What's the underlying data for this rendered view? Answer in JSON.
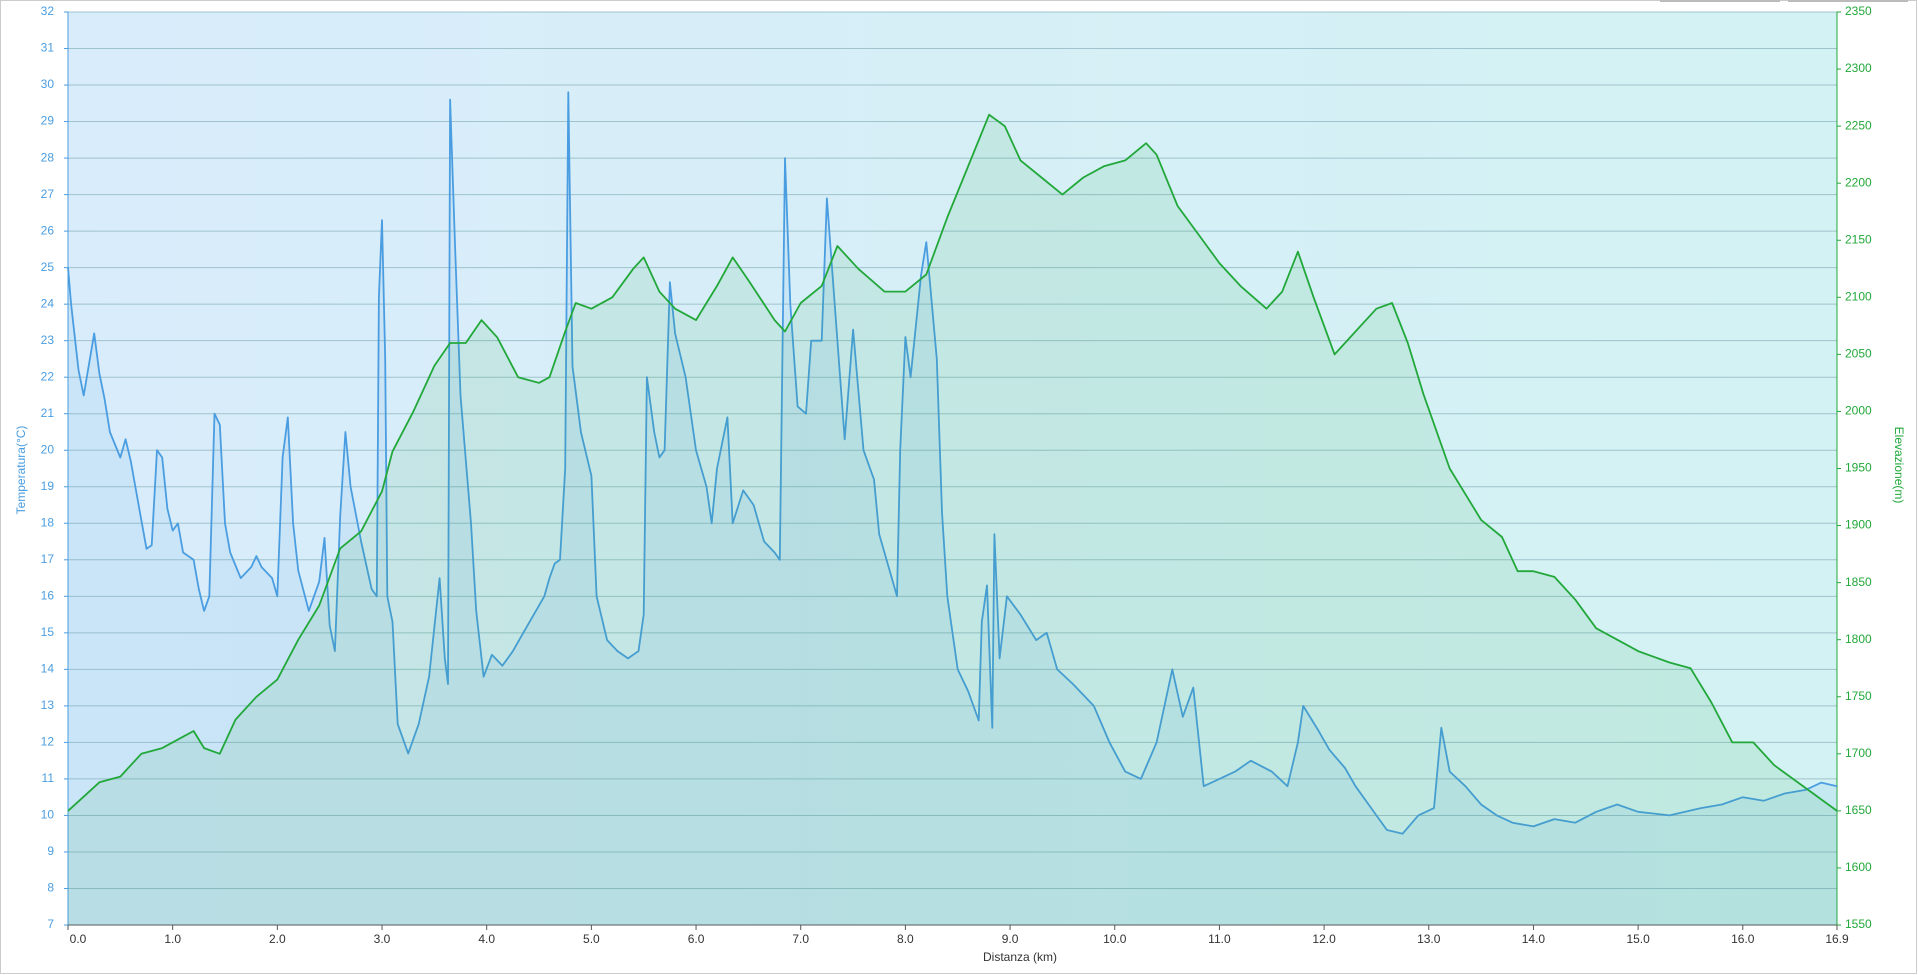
{
  "chart_data": {
    "type": "line",
    "xlabel": "Distanza  (km)",
    "ylabel": "Temperatura(°C)",
    "y2label": "Elevazione(m)",
    "xlim": [
      0,
      16.9
    ],
    "xticks": [
      {
        "value": 0,
        "label": "0.0"
      },
      {
        "value": 1,
        "label": "1.0"
      },
      {
        "value": 2,
        "label": "2.0"
      },
      {
        "value": 3,
        "label": "3.0"
      },
      {
        "value": 4,
        "label": "4.0"
      },
      {
        "value": 5,
        "label": "5.0"
      },
      {
        "value": 6,
        "label": "6.0"
      },
      {
        "value": 7,
        "label": "7.0"
      },
      {
        "value": 8,
        "label": "8.0"
      },
      {
        "value": 9,
        "label": "9.0"
      },
      {
        "value": 10,
        "label": "10.0"
      },
      {
        "value": 11,
        "label": "11.0"
      },
      {
        "value": 12,
        "label": "12.0"
      },
      {
        "value": 13,
        "label": "13.0"
      },
      {
        "value": 14,
        "label": "14.0"
      },
      {
        "value": 15,
        "label": "15.0"
      },
      {
        "value": 16,
        "label": "16.0"
      },
      {
        "value": 16.9,
        "label": "16.9"
      }
    ],
    "ylim": [
      7,
      32
    ],
    "yticks": [
      7,
      8,
      9,
      10,
      11,
      12,
      13,
      14,
      15,
      16,
      17,
      18,
      19,
      20,
      21,
      22,
      23,
      24,
      25,
      26,
      27,
      28,
      29,
      30,
      31,
      32
    ],
    "y2lim": [
      1550,
      2350
    ],
    "y2ticks": [
      1550,
      1600,
      1650,
      1700,
      1750,
      1800,
      1850,
      1900,
      1950,
      2000,
      2050,
      2100,
      2150,
      2200,
      2250,
      2300,
      2350
    ],
    "grid": true,
    "series": [
      {
        "color": "#4a9de0",
        "axis": "y",
        "x": [
          0,
          0.03,
          0.1,
          0.15,
          0.25,
          0.3,
          0.35,
          0.4,
          0.5,
          0.55,
          0.6,
          0.65,
          0.75,
          0.8,
          0.85,
          0.9,
          0.95,
          1.0,
          1.05,
          1.1,
          1.2,
          1.25,
          1.3,
          1.35,
          1.4,
          1.45,
          1.5,
          1.55,
          1.65,
          1.75,
          1.8,
          1.85,
          1.95,
          2.0,
          2.05,
          2.1,
          2.15,
          2.2,
          2.3,
          2.4,
          2.45,
          2.5,
          2.55,
          2.6,
          2.65,
          2.7,
          2.8,
          2.9,
          2.95,
          2.97,
          3.0,
          3.03,
          3.05,
          3.1,
          3.15,
          3.25,
          3.35,
          3.45,
          3.55,
          3.6,
          3.63,
          3.65,
          3.7,
          3.75,
          3.85,
          3.9,
          3.97,
          4.05,
          4.15,
          4.25,
          4.35,
          4.45,
          4.55,
          4.6,
          4.65,
          4.7,
          4.75,
          4.78,
          4.82,
          4.9,
          5.0,
          5.05,
          5.15,
          5.25,
          5.35,
          5.45,
          5.5,
          5.53,
          5.6,
          5.65,
          5.7,
          5.75,
          5.8,
          5.9,
          6.0,
          6.1,
          6.15,
          6.2,
          6.3,
          6.35,
          6.45,
          6.55,
          6.65,
          6.75,
          6.8,
          6.85,
          6.9,
          6.97,
          7.05,
          7.1,
          7.2,
          7.25,
          7.35,
          7.42,
          7.5,
          7.6,
          7.7,
          7.75,
          7.85,
          7.92,
          7.95,
          8.0,
          8.05,
          8.15,
          8.2,
          8.3,
          8.35,
          8.4,
          8.5,
          8.6,
          8.7,
          8.73,
          8.78,
          8.83,
          8.85,
          8.9,
          8.97,
          9.1,
          9.25,
          9.35,
          9.45,
          9.6,
          9.8,
          9.95,
          10.1,
          10.25,
          10.4,
          10.55,
          10.65,
          10.75,
          10.85,
          11.0,
          11.15,
          11.3,
          11.5,
          11.65,
          11.75,
          11.8,
          11.95,
          12.05,
          12.2,
          12.3,
          12.45,
          12.6,
          12.75,
          12.9,
          13.05,
          13.12,
          13.2,
          13.35,
          13.5,
          13.65,
          13.8,
          14.0,
          14.2,
          14.4,
          14.6,
          14.8,
          15.0,
          15.3,
          15.6,
          15.8,
          16.0,
          16.2,
          16.4,
          16.6,
          16.75,
          16.9
        ],
        "values": [
          25,
          24,
          22.2,
          21.5,
          23.2,
          22.1,
          21.4,
          20.5,
          19.8,
          20.3,
          19.7,
          18.9,
          17.3,
          17.4,
          20,
          19.8,
          18.4,
          17.8,
          18,
          17.2,
          17,
          16.2,
          15.6,
          16,
          21,
          20.7,
          18,
          17.2,
          16.5,
          16.8,
          17.1,
          16.8,
          16.5,
          16,
          19.8,
          20.9,
          18,
          16.7,
          15.6,
          16.4,
          17.6,
          15.2,
          14.5,
          18.2,
          20.5,
          19,
          17.5,
          16.2,
          16,
          24.2,
          26.3,
          22.5,
          16,
          15.3,
          12.5,
          11.7,
          12.5,
          13.8,
          16.5,
          14.3,
          13.6,
          29.6,
          25.4,
          21.5,
          18,
          15.6,
          13.8,
          14.4,
          14.1,
          14.5,
          15,
          15.5,
          16,
          16.5,
          16.9,
          17,
          19.5,
          29.8,
          22.3,
          20.5,
          19.3,
          16,
          14.8,
          14.5,
          14.3,
          14.5,
          15.5,
          22,
          20.5,
          19.8,
          20,
          24.6,
          23.2,
          22,
          20,
          19,
          18,
          19.5,
          20.9,
          18,
          18.9,
          18.5,
          17.5,
          17.2,
          17,
          28,
          24,
          21.2,
          21,
          23,
          23,
          26.9,
          23,
          20.3,
          23.3,
          20,
          19.2,
          17.7,
          16.7,
          16,
          20,
          23.1,
          22,
          24.8,
          25.7,
          22.5,
          18.3,
          16,
          14,
          13.4,
          12.6,
          15.3,
          16.3,
          12.4,
          17.7,
          14.3,
          16,
          15.5,
          14.8,
          15,
          14,
          13.6,
          13,
          12,
          11.2,
          11,
          12,
          14,
          12.7,
          13.5,
          10.8,
          11,
          11.2,
          11.5,
          11.2,
          10.8,
          12,
          13,
          12.3,
          11.8,
          11.3,
          10.8,
          10.2,
          9.6,
          9.5,
          10,
          10.2,
          12.4,
          11.2,
          10.8,
          10.3,
          10,
          9.8,
          9.7,
          9.9,
          9.8,
          10.1,
          10.3,
          10.1,
          10,
          10.2,
          10.3,
          10.5,
          10.4,
          10.6,
          10.7,
          10.9,
          10.8
        ]
      },
      {
        "color": "#22a83a",
        "axis": "y2",
        "x": [
          0,
          0.3,
          0.5,
          0.7,
          0.9,
          1.1,
          1.2,
          1.3,
          1.45,
          1.6,
          1.8,
          2.0,
          2.2,
          2.4,
          2.6,
          2.8,
          3.0,
          3.1,
          3.3,
          3.5,
          3.65,
          3.8,
          3.95,
          4.1,
          4.3,
          4.5,
          4.6,
          4.75,
          4.85,
          5.0,
          5.2,
          5.4,
          5.5,
          5.65,
          5.8,
          6.0,
          6.2,
          6.35,
          6.5,
          6.75,
          6.85,
          7.0,
          7.2,
          7.35,
          7.55,
          7.8,
          8.0,
          8.2,
          8.4,
          8.6,
          8.8,
          8.95,
          9.1,
          9.3,
          9.5,
          9.7,
          9.9,
          10.1,
          10.3,
          10.4,
          10.6,
          10.8,
          11.0,
          11.2,
          11.45,
          11.6,
          11.75,
          11.9,
          12.1,
          12.3,
          12.5,
          12.65,
          12.8,
          12.95,
          13.2,
          13.4,
          13.5,
          13.7,
          13.85,
          14.0,
          14.2,
          14.4,
          14.6,
          14.8,
          15.0,
          15.3,
          15.5,
          15.7,
          15.9,
          16.1,
          16.3,
          16.6,
          16.9
        ],
        "values": [
          1650,
          1675,
          1680,
          1700,
          1705,
          1715,
          1720,
          1705,
          1700,
          1730,
          1750,
          1765,
          1800,
          1830,
          1880,
          1895,
          1930,
          1965,
          2000,
          2040,
          2060,
          2060,
          2080,
          2065,
          2030,
          2025,
          2030,
          2070,
          2095,
          2090,
          2100,
          2125,
          2135,
          2105,
          2090,
          2080,
          2110,
          2135,
          2115,
          2080,
          2070,
          2095,
          2110,
          2145,
          2125,
          2105,
          2105,
          2120,
          2170,
          2215,
          2260,
          2250,
          2220,
          2205,
          2190,
          2205,
          2215,
          2220,
          2235,
          2225,
          2180,
          2155,
          2130,
          2110,
          2090,
          2105,
          2140,
          2100,
          2050,
          2070,
          2090,
          2095,
          2060,
          2015,
          1950,
          1920,
          1905,
          1890,
          1860,
          1860,
          1855,
          1835,
          1810,
          1800,
          1790,
          1780,
          1775,
          1745,
          1710,
          1710,
          1690,
          1670,
          1650
        ]
      }
    ]
  }
}
